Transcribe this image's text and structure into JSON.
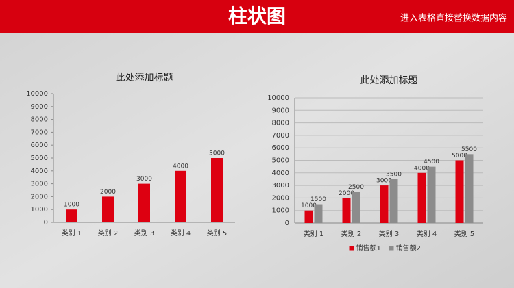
{
  "header": {
    "title": "柱状图",
    "subtitle": "进入表格直接替换数据内容"
  },
  "chart_data": [
    {
      "type": "bar",
      "title": "此处添加标题",
      "categories": [
        "类别 1",
        "类别 2",
        "类别 3",
        "类别 4",
        "类别 5"
      ],
      "values": [
        1000,
        2000,
        3000,
        4000,
        5000
      ],
      "color": "#dd0011",
      "ylim": [
        0,
        10000
      ],
      "yticks": [
        0,
        1000,
        2000,
        3000,
        4000,
        5000,
        6000,
        7000,
        8000,
        9000,
        10000
      ],
      "grid": false
    },
    {
      "type": "bar",
      "title": "此处添加标题",
      "categories": [
        "类别 1",
        "类别 2",
        "类别 3",
        "类别 4",
        "类别 5"
      ],
      "series": [
        {
          "name": "销售额1",
          "color": "#dd0011",
          "values": [
            1000,
            2000,
            3000,
            4000,
            5000
          ]
        },
        {
          "name": "销售额2",
          "color": "#8c8c8c",
          "values": [
            1500,
            2500,
            3500,
            4500,
            5500
          ]
        }
      ],
      "ylim": [
        0,
        10000
      ],
      "yticks": [
        0,
        1000,
        2000,
        3000,
        4000,
        5000,
        6000,
        7000,
        8000,
        9000,
        10000
      ],
      "grid": true,
      "legend": "bottom"
    }
  ]
}
